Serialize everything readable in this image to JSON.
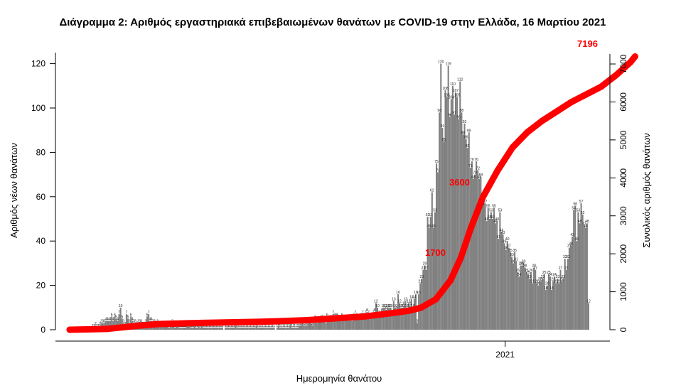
{
  "chart_data": {
    "type": "bar+line",
    "title": "Διάγραμμα 2: Αριθμός εργαστηριακά επιβεβαιωμένων θανάτων με COVID-19 στην Ελλάδα, 16 Μαρτίου 2021",
    "xlabel": "Ημερομηνία θανάτου",
    "ylabel_left": "Αριθμός νέων θανάτων",
    "ylabel_right": "Συνολικός αριθμός θανάτων",
    "x_tick_labels": [
      "2021"
    ],
    "x_tick_day": 295,
    "ylim_left": [
      0,
      125
    ],
    "ylim_right": [
      0,
      7300
    ],
    "left_ticks": [
      0,
      20,
      40,
      60,
      80,
      100,
      120
    ],
    "right_ticks": [
      0,
      1000,
      2000,
      3000,
      4000,
      5000,
      6000,
      7000
    ],
    "bar_color": "#808080",
    "line_color": "#ff0000",
    "callouts": [
      "7196",
      "3600",
      "1700"
    ],
    "series": [
      {
        "name": "new",
        "kind": "bar",
        "values": [
          0,
          0,
          0,
          0,
          0,
          0,
          0,
          0,
          0,
          0,
          0,
          0,
          0,
          0,
          0,
          1,
          1,
          2,
          1,
          1,
          2,
          3,
          3,
          3,
          4,
          4,
          4,
          4,
          6,
          4,
          6,
          5,
          4,
          7,
          10,
          5,
          3,
          2,
          7,
          5,
          3,
          6,
          4,
          3,
          3,
          2,
          3,
          3,
          3,
          2,
          2,
          3,
          6,
          7,
          4,
          4,
          3,
          3,
          2,
          3,
          2,
          2,
          2,
          2,
          2,
          2,
          2,
          1,
          2,
          3,
          2,
          1,
          2,
          2,
          1,
          1,
          1,
          1,
          1,
          2,
          2,
          2,
          1,
          1,
          2,
          1,
          1,
          2,
          1,
          2,
          1,
          1,
          1,
          1,
          1,
          1,
          1,
          1,
          1,
          1,
          1,
          1,
          1,
          1,
          0,
          1,
          1,
          1,
          1,
          1,
          1,
          1,
          2,
          1,
          1,
          1,
          1,
          1,
          1,
          1,
          1,
          1,
          1,
          1,
          1,
          1,
          2,
          1,
          1,
          1,
          1,
          1,
          1,
          1,
          1,
          1,
          1,
          1,
          1,
          0,
          1,
          2,
          1,
          1,
          1,
          1,
          1,
          1,
          1,
          3,
          1,
          1,
          1,
          1,
          1,
          2,
          2,
          3,
          2,
          2,
          2,
          3,
          4,
          3,
          2,
          3,
          5,
          3,
          4,
          4,
          5,
          5,
          4,
          3,
          6,
          4,
          5,
          5,
          7,
          6,
          6,
          6,
          5,
          5,
          6,
          4,
          5,
          5,
          5,
          4,
          5,
          4,
          6,
          7,
          6,
          5,
          5,
          6,
          7,
          6,
          7,
          8,
          7,
          6,
          5,
          7,
          8,
          12,
          10,
          7,
          6,
          8,
          10,
          10,
          9,
          10,
          10,
          10,
          7,
          13,
          10,
          9,
          16,
          12,
          10,
          10,
          11,
          13,
          10,
          12,
          11,
          14,
          10,
          14,
          16,
          3,
          16,
          21,
          23,
          27,
          29,
          27,
          51,
          46,
          51,
          62,
          46,
          53,
          75,
          71,
          98,
          120,
          91,
          85,
          108,
          105,
          119,
          96,
          104,
          110,
          97,
          107,
          105,
          95,
          112,
          98,
          88,
          93,
          86,
          82,
          89,
          73,
          76,
          68,
          70,
          76,
          72,
          68,
          69,
          56,
          59,
          57,
          49,
          55,
          50,
          53,
          50,
          55,
          48,
          49,
          41,
          53,
          44,
          43,
          39,
          36,
          40,
          37,
          35,
          33,
          30,
          35,
          31,
          26,
          24,
          29,
          29,
          30,
          28,
          26,
          25,
          23,
          26,
          21,
          28,
          27,
          21,
          20,
          22,
          22,
          23,
          25,
          18,
          20,
          25,
          24,
          18,
          22,
          24,
          21,
          23,
          21,
          27,
          22,
          23,
          32,
          27,
          32,
          37,
          38,
          42,
          54,
          56,
          40,
          53,
          48,
          57,
          52,
          47,
          46,
          48,
          12
        ]
      }
    ],
    "cumulative_keypoints": [
      {
        "day": 0,
        "value": 0
      },
      {
        "day": 25,
        "value": 20
      },
      {
        "day": 45,
        "value": 100
      },
      {
        "day": 60,
        "value": 150
      },
      {
        "day": 90,
        "value": 180
      },
      {
        "day": 130,
        "value": 210
      },
      {
        "day": 160,
        "value": 250
      },
      {
        "day": 180,
        "value": 300
      },
      {
        "day": 200,
        "value": 350
      },
      {
        "day": 215,
        "value": 420
      },
      {
        "day": 230,
        "value": 500
      },
      {
        "day": 238,
        "value": 580
      },
      {
        "day": 248,
        "value": 800
      },
      {
        "day": 258,
        "value": 1300
      },
      {
        "day": 265,
        "value": 1900
      },
      {
        "day": 272,
        "value": 2700
      },
      {
        "day": 280,
        "value": 3500
      },
      {
        "day": 290,
        "value": 4200
      },
      {
        "day": 300,
        "value": 4800
      },
      {
        "day": 310,
        "value": 5200
      },
      {
        "day": 320,
        "value": 5500
      },
      {
        "day": 330,
        "value": 5750
      },
      {
        "day": 340,
        "value": 6000
      },
      {
        "day": 350,
        "value": 6200
      },
      {
        "day": 360,
        "value": 6400
      },
      {
        "day": 370,
        "value": 6700
      },
      {
        "day": 380,
        "value": 7050
      },
      {
        "day": 383,
        "value": 7196
      }
    ]
  }
}
